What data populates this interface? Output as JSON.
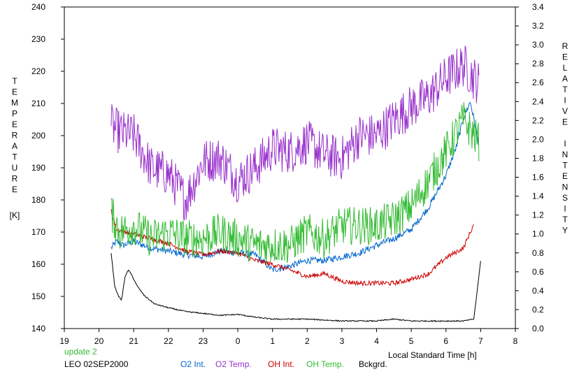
{
  "chart_data": {
    "type": "line",
    "y_label_left_letters": [
      "T",
      "E",
      "M",
      "P",
      "E",
      "R",
      "A",
      "T",
      "U",
      "R",
      "E"
    ],
    "y_label_left_unit": "[K]",
    "y_label_right_letters": [
      "R",
      "E",
      "L",
      "A",
      "T",
      "I",
      "V",
      "E",
      "",
      "I",
      "N",
      "T",
      "E",
      "N",
      "S",
      "I",
      "T",
      "Y"
    ],
    "x_label": "Local Standard Time [h]",
    "x_ticks": [
      "19",
      "20",
      "21",
      "22",
      "23",
      "0",
      "1",
      "2",
      "3",
      "4",
      "5",
      "6",
      "7",
      "8"
    ],
    "x_range": [
      19,
      32
    ],
    "y_left_ticks": [
      "140",
      "150",
      "160",
      "170",
      "180",
      "190",
      "200",
      "210",
      "220",
      "230",
      "240"
    ],
    "y_left_range": [
      140,
      240
    ],
    "y_right_ticks": [
      "0.0",
      "0.2",
      "0.4",
      "0.6",
      "0.8",
      "1.0",
      "1.2",
      "1.4",
      "1.6",
      "1.8",
      "2.0",
      "2.2",
      "2.4",
      "2.6",
      "2.8",
      "3.0",
      "3.2",
      "3.4"
    ],
    "y_right_range": [
      0.0,
      3.4
    ],
    "grid": false,
    "notes": {
      "update": "update 2",
      "station": "LEO 02SEP2000"
    },
    "series": [
      {
        "name": "O2 Int.",
        "color": "#0066cc",
        "axis": "right",
        "noise": 0.035,
        "x": [
          20.35,
          20.5,
          20.7,
          21.0,
          21.5,
          22.0,
          22.5,
          23.0,
          23.5,
          24.0,
          24.5,
          25.0,
          25.5,
          26.0,
          26.5,
          27.0,
          27.5,
          28.0,
          28.5,
          29.0,
          29.5,
          30.0,
          30.3,
          30.5,
          30.7,
          30.95
        ],
        "y": [
          0.85,
          0.92,
          0.88,
          0.92,
          0.85,
          0.82,
          0.78,
          0.76,
          0.82,
          0.8,
          0.78,
          0.62,
          0.66,
          0.72,
          0.72,
          0.76,
          0.8,
          0.88,
          0.95,
          1.05,
          1.28,
          1.62,
          1.92,
          2.22,
          2.4,
          1.95
        ]
      },
      {
        "name": "O2 Temp.",
        "color": "#9933cc",
        "axis": "left",
        "noise": 7,
        "x": [
          20.35,
          20.6,
          21.0,
          21.5,
          22.0,
          22.5,
          23.0,
          23.5,
          24.0,
          24.5,
          25.0,
          25.5,
          26.0,
          26.5,
          27.0,
          27.5,
          28.0,
          28.5,
          29.0,
          29.5,
          30.0,
          30.5,
          30.95
        ],
        "y": [
          203,
          201,
          200,
          190,
          188,
          180,
          192,
          193,
          186,
          190,
          196,
          195,
          198,
          194,
          193,
          200,
          200,
          205,
          209,
          212,
          218,
          222,
          216
        ]
      },
      {
        "name": "OH Int.",
        "color": "#cc0000",
        "axis": "right",
        "noise": 0.025,
        "x": [
          20.35,
          20.5,
          21.0,
          21.5,
          22.0,
          22.5,
          23.0,
          23.5,
          24.0,
          24.5,
          25.0,
          25.5,
          26.0,
          26.5,
          27.0,
          27.5,
          28.0,
          28.5,
          29.0,
          29.5,
          30.0,
          30.5,
          30.8
        ],
        "y": [
          1.25,
          1.05,
          1.0,
          0.95,
          0.9,
          0.82,
          0.78,
          0.82,
          0.8,
          0.72,
          0.68,
          0.62,
          0.55,
          0.58,
          0.5,
          0.48,
          0.48,
          0.48,
          0.52,
          0.58,
          0.75,
          0.85,
          1.1
        ]
      },
      {
        "name": "OH Temp.",
        "color": "#33bb33",
        "axis": "left",
        "noise": 6,
        "x": [
          20.35,
          20.6,
          21.0,
          21.5,
          22.0,
          22.5,
          23.0,
          23.5,
          24.0,
          24.5,
          25.0,
          25.5,
          26.0,
          26.5,
          27.0,
          27.5,
          28.0,
          28.5,
          29.0,
          29.5,
          30.0,
          30.5,
          30.95
        ],
        "y": [
          176,
          170,
          172,
          168,
          170,
          168,
          168,
          170,
          168,
          166,
          166,
          166,
          170,
          168,
          172,
          172,
          172,
          174,
          178,
          186,
          195,
          205,
          198
        ]
      },
      {
        "name": "Bckgrd.",
        "color": "#000000",
        "axis": "right",
        "noise": 0.006,
        "x": [
          20.35,
          20.45,
          20.55,
          20.65,
          20.75,
          20.85,
          20.95,
          21.1,
          21.3,
          21.6,
          22.0,
          22.5,
          23.0,
          23.5,
          24.0,
          24.5,
          25.0,
          26.0,
          27.0,
          28.0,
          28.5,
          29.0,
          30.0,
          30.5,
          30.8,
          30.9,
          31.0
        ],
        "y": [
          0.8,
          0.45,
          0.35,
          0.3,
          0.55,
          0.62,
          0.56,
          0.45,
          0.35,
          0.26,
          0.22,
          0.18,
          0.16,
          0.14,
          0.15,
          0.12,
          0.1,
          0.1,
          0.08,
          0.08,
          0.1,
          0.08,
          0.08,
          0.08,
          0.1,
          0.4,
          0.72
        ]
      }
    ]
  }
}
